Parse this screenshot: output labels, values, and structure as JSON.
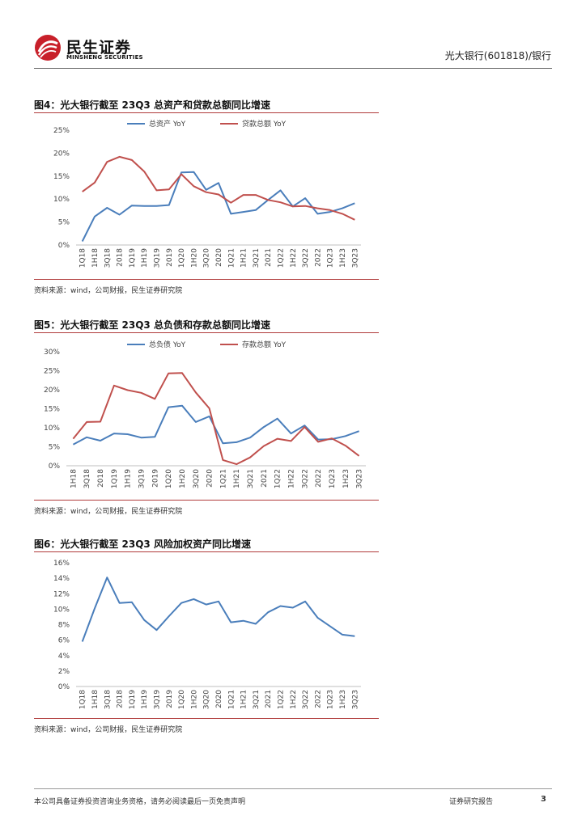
{
  "header": {
    "logo_cn": "民生证券",
    "logo_en": "MINSHENG SECURITIES",
    "right_text": "光大银行(601818)/银行"
  },
  "colors": {
    "blue": "#4a7ebb",
    "red": "#c0504d",
    "accent": "#b03a3a"
  },
  "figures": [
    {
      "title": "图4：光大银行截至 23Q3 总资产和贷款总额同比增速",
      "source": "资料来源：wind，公司财报，民生证券研究院"
    },
    {
      "title": "图5：光大银行截至 23Q3 总负债和存款总额同比增速",
      "source": "资料来源：wind，公司财报，民生证券研究院"
    },
    {
      "title": "图6：光大银行截至 23Q3 风险加权资产同比增速",
      "source": "资料来源：wind，公司财报，民生证券研究院"
    }
  ],
  "chart_data": [
    {
      "type": "line",
      "categories": [
        "1Q18",
        "1H18",
        "3Q18",
        "2018",
        "1Q19",
        "1H19",
        "3Q19",
        "2019",
        "1Q20",
        "1H20",
        "3Q20",
        "2020",
        "1Q21",
        "1H21",
        "3Q21",
        "2021",
        "1Q22",
        "1H22",
        "3Q22",
        "2022",
        "1Q23",
        "1H23",
        "3Q23"
      ],
      "ylim": [
        0,
        25
      ],
      "yticks": [
        "0%",
        "5%",
        "10%",
        "15%",
        "20%",
        "25%"
      ],
      "legend_position": "top",
      "series": [
        {
          "name": "总资产 YoY",
          "color": "#4a7ebb",
          "values": [
            0.8,
            6.2,
            8.1,
            6.6,
            8.6,
            8.5,
            8.5,
            8.7,
            15.8,
            15.9,
            12.0,
            13.5,
            6.8,
            7.2,
            7.6,
            9.8,
            11.9,
            8.4,
            10.2,
            6.8,
            7.2,
            8.0,
            9.1
          ]
        },
        {
          "name": "贷款总额 YoY",
          "color": "#c0504d",
          "values": [
            11.6,
            13.6,
            18.1,
            19.2,
            18.5,
            16.0,
            11.9,
            12.1,
            15.4,
            12.8,
            11.5,
            11.0,
            9.2,
            10.9,
            10.9,
            9.8,
            9.3,
            8.4,
            8.5,
            8.0,
            7.6,
            6.8,
            5.5
          ]
        }
      ]
    },
    {
      "type": "line",
      "categories": [
        "1H18",
        "3Q18",
        "2018",
        "1Q19",
        "1H19",
        "3Q19",
        "2019",
        "1Q20",
        "1H20",
        "3Q20",
        "2020",
        "1Q21",
        "1H21",
        "3Q21",
        "2021",
        "1Q22",
        "1H22",
        "3Q22",
        "2022",
        "1Q23",
        "1H23",
        "3Q23"
      ],
      "ylim": [
        0,
        30
      ],
      "yticks": [
        "0%",
        "5%",
        "10%",
        "15%",
        "20%",
        "25%",
        "30%"
      ],
      "legend_position": "top",
      "series": [
        {
          "name": "总负债 YoY",
          "color": "#4a7ebb",
          "values": [
            5.6,
            7.5,
            6.6,
            8.5,
            8.3,
            7.4,
            7.6,
            15.4,
            15.8,
            11.5,
            13.0,
            5.9,
            6.2,
            7.4,
            10.2,
            12.4,
            8.5,
            10.6,
            6.9,
            7.0,
            7.8,
            9.1
          ]
        },
        {
          "name": "存款总额 YoY",
          "color": "#c0504d",
          "values": [
            7.1,
            11.5,
            11.6,
            21.1,
            19.9,
            19.2,
            17.6,
            24.3,
            24.4,
            19.3,
            15.1,
            1.5,
            0.4,
            2.2,
            5.2,
            7.1,
            6.5,
            10.2,
            6.3,
            7.2,
            5.3,
            2.6
          ]
        }
      ]
    },
    {
      "type": "line",
      "categories": [
        "1Q18",
        "1H18",
        "3Q18",
        "2018",
        "1Q19",
        "1H19",
        "3Q19",
        "2019",
        "1Q20",
        "1H20",
        "3Q20",
        "2020",
        "1Q21",
        "1H21",
        "3Q21",
        "2021",
        "1Q22",
        "1H22",
        "3Q22",
        "2022",
        "1Q23",
        "1H23",
        "3Q23"
      ],
      "ylim": [
        0,
        16
      ],
      "yticks": [
        "0%",
        "2%",
        "4%",
        "6%",
        "8%",
        "10%",
        "12%",
        "14%",
        "16%"
      ],
      "series": [
        {
          "color": "#4a7ebb",
          "values": [
            5.8,
            10.1,
            14.1,
            10.8,
            10.9,
            8.6,
            7.3,
            9.1,
            10.8,
            11.3,
            10.6,
            11.0,
            8.3,
            8.5,
            8.1,
            9.6,
            10.4,
            10.2,
            11.0,
            8.9,
            7.8,
            6.7,
            6.5
          ]
        }
      ]
    }
  ],
  "footer": {
    "disclaimer": "本公司具备证券投资咨询业务资格，请务必阅读最后一页免责声明",
    "report_type": "证券研究报告",
    "page": "3"
  }
}
